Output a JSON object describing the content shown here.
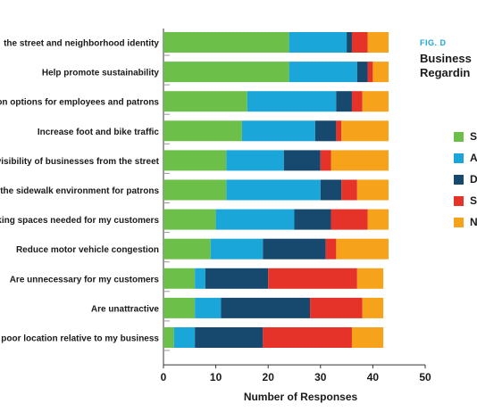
{
  "figure": {
    "label": "FIG. D",
    "title_lines": [
      "Business",
      "Regardin"
    ]
  },
  "legend": [
    {
      "label": "S",
      "color": "#6cc04a"
    },
    {
      "label": "A",
      "color": "#1aa6d8"
    },
    {
      "label": "D",
      "color": "#17496e"
    },
    {
      "label": "S",
      "color": "#e5332a"
    },
    {
      "label": "N",
      "color": "#f7a21b"
    }
  ],
  "chart_data": {
    "type": "bar",
    "orientation": "horizontal",
    "stacked": true,
    "categories": [
      "the street and neighborhood identity",
      "Help promote sustainability",
      "on options for employees and patrons",
      "Increase foot and bike traffic",
      "visibility of businesses from the street",
      "the sidewalk environment for patrons",
      "king spaces needed for my customers",
      "Reduce motor vehicle congestion",
      "Are unnecessary for my customers",
      "Are unattractive",
      "poor location relative to my business"
    ],
    "series": [
      {
        "color": "#6cc04a",
        "values": [
          24,
          24,
          16,
          15,
          12,
          12,
          10,
          9,
          6,
          6,
          2
        ]
      },
      {
        "color": "#1aa6d8",
        "values": [
          11,
          13,
          17,
          14,
          11,
          18,
          15,
          10,
          2,
          5,
          4
        ]
      },
      {
        "color": "#17496e",
        "values": [
          1,
          2,
          3,
          4,
          7,
          4,
          7,
          12,
          12,
          17,
          13
        ]
      },
      {
        "color": "#e5332a",
        "values": [
          3,
          1,
          2,
          1,
          2,
          3,
          7,
          2,
          17,
          10,
          17
        ]
      },
      {
        "color": "#f7a21b",
        "values": [
          4,
          3,
          5,
          9,
          11,
          6,
          4,
          10,
          5,
          4,
          6
        ]
      }
    ],
    "xlabel": "Number of Responses",
    "xlim": [
      0,
      50
    ],
    "xticks": [
      0,
      10,
      20,
      30,
      40,
      50
    ]
  }
}
